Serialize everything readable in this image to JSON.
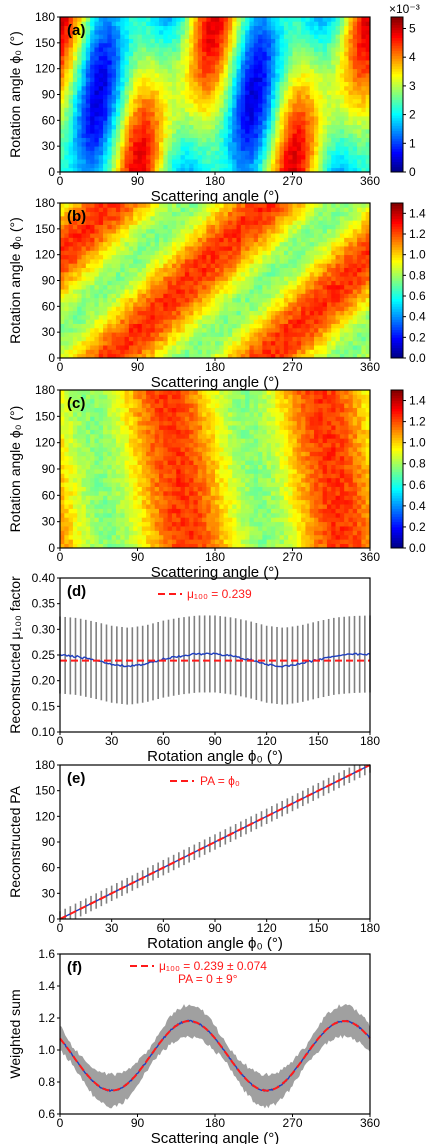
{
  "colors": {
    "jet": [
      "#00007f",
      "#0000ff",
      "#007fff",
      "#00ffff",
      "#7fff7f",
      "#ffff00",
      "#ff7f00",
      "#ff0000",
      "#7f0000"
    ],
    "blue_line": "#1f3fbf",
    "red_dash": "#ff1a1a",
    "errorbar_gray": "#808080",
    "band_gray": "#a0a0a0"
  },
  "chart_data": [
    {
      "id": "a",
      "type": "heatmap",
      "panel_label": "(a)",
      "xlabel": "Scattering angle (°)",
      "ylabel": "Rotation angle ϕ₀ (°)",
      "x_ticks": [
        "0",
        "90",
        "180",
        "270",
        "360"
      ],
      "y_ticks": [
        "0",
        "30",
        "60",
        "90",
        "120",
        "150",
        "180"
      ],
      "xlim": [
        0,
        360
      ],
      "ylim": [
        0,
        180
      ],
      "colorbar": {
        "ticks": [
          "0",
          "1",
          "2",
          "3",
          "4",
          "5"
        ],
        "range": [
          0,
          5.4
        ],
        "exponent_label": "×10⁻³"
      },
      "pattern": "mean 2.7e-3, peaks ~5e-3 near 90° and 270°, minima ~1.5e-3 near 180° and 360°; pattern rotates with ϕ₀"
    },
    {
      "id": "b",
      "type": "heatmap",
      "panel_label": "(b)",
      "xlabel": "Scattering angle (°)",
      "ylabel": "Rotation angle ϕ₀ (°)",
      "x_ticks": [
        "0",
        "90",
        "180",
        "270",
        "360"
      ],
      "y_ticks": [
        "0",
        "30",
        "60",
        "90",
        "120",
        "150",
        "180"
      ],
      "xlim": [
        0,
        360
      ],
      "ylim": [
        0,
        180
      ],
      "colorbar": {
        "ticks": [
          "0.0",
          "0.2",
          "0.4",
          "0.6",
          "0.8",
          "1.0",
          "1.2",
          "1.4"
        ],
        "range": [
          0,
          1.5
        ]
      },
      "pattern": "diagonal bands, value ≈ 1 + 0.24·cos(2(θ − ϕ₀ − 60°))"
    },
    {
      "id": "c",
      "type": "heatmap",
      "panel_label": "(c)",
      "xlabel": "Scattering angle (°)",
      "ylabel": "Rotation angle ϕ₀ (°)",
      "x_ticks": [
        "0",
        "90",
        "180",
        "270",
        "360"
      ],
      "y_ticks": [
        "0",
        "30",
        "60",
        "90",
        "120",
        "150",
        "180"
      ],
      "xlim": [
        0,
        360
      ],
      "ylim": [
        0,
        180
      ],
      "colorbar": {
        "ticks": [
          "0.0",
          "0.2",
          "0.4",
          "0.6",
          "0.8",
          "1.0",
          "1.2",
          "1.4"
        ],
        "range": [
          0,
          1.5
        ]
      },
      "pattern": "tilted vertical bands, peaks near 150° and 330°, value ≈ 1 + 0.24·cos(2(θ − 150° + 0.15·ϕ₀))"
    },
    {
      "id": "d",
      "type": "line",
      "panel_label": "(d)",
      "xlabel": "Rotation angle ϕ₀ (°)",
      "ylabel": "Reconstructed μ₁₀₀ factor",
      "x_ticks": [
        "0",
        "30",
        "60",
        "90",
        "120",
        "150",
        "180"
      ],
      "y_ticks": [
        "0.10",
        "0.15",
        "0.20",
        "0.25",
        "0.30",
        "0.35",
        "0.40"
      ],
      "xlim": [
        0,
        180
      ],
      "ylim": [
        0.1,
        0.4
      ],
      "legend": {
        "label": "μ₁₀₀ = 0.239",
        "placement": "top-center"
      },
      "reference_value": 0.239,
      "series": [
        {
          "x": [
            0,
            10,
            20,
            30,
            40,
            50,
            60,
            70,
            80,
            90,
            100,
            110,
            120,
            130,
            140,
            150,
            160,
            170,
            180
          ],
          "values": [
            0.25,
            0.247,
            0.24,
            0.232,
            0.228,
            0.233,
            0.242,
            0.248,
            0.252,
            0.252,
            0.248,
            0.241,
            0.232,
            0.228,
            0.233,
            0.241,
            0.248,
            0.251,
            0.252
          ],
          "err": 0.075
        }
      ]
    },
    {
      "id": "e",
      "type": "line",
      "panel_label": "(e)",
      "xlabel": "Rotation angle ϕ₀ (°)",
      "ylabel": "Reconstructed PA",
      "x_ticks": [
        "0",
        "30",
        "60",
        "90",
        "120",
        "150",
        "180"
      ],
      "y_ticks": [
        "0",
        "30",
        "60",
        "90",
        "120",
        "150",
        "180"
      ],
      "xlim": [
        0,
        180
      ],
      "ylim": [
        0,
        180
      ],
      "legend": {
        "label": "PA = ϕ₀",
        "placement": "top-center"
      },
      "series": [
        {
          "x": [
            0,
            180
          ],
          "values": [
            0,
            180
          ],
          "err": 9
        }
      ]
    },
    {
      "id": "f",
      "type": "line",
      "panel_label": "(f)",
      "xlabel": "Scattering angle (°)",
      "ylabel": "Weighted sum",
      "x_ticks": [
        "0",
        "90",
        "180",
        "270",
        "360"
      ],
      "y_ticks": [
        "0.6",
        "0.8",
        "1.0",
        "1.2",
        "1.4",
        "1.6"
      ],
      "xlim": [
        0,
        360
      ],
      "ylim": [
        0.6,
        1.7
      ],
      "legend": {
        "label_line1": "μ₁₀₀ = 0.239 ± 0.074",
        "label_line2": "PA = 0 ± 9°",
        "placement": "top-center"
      },
      "model": {
        "amplitude": 0.239,
        "center": 1.0,
        "phase_deg": 150
      }
    }
  ]
}
